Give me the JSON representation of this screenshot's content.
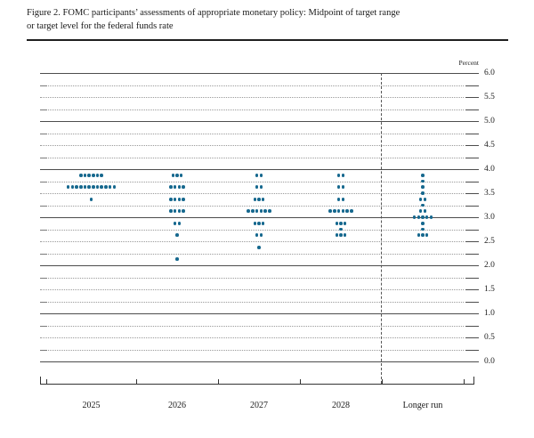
{
  "figure": {
    "title_line1": "Figure 2. FOMC participants’ assessments of appropriate monetary policy: Midpoint of target range",
    "title_line2": "or target level for the federal funds rate"
  },
  "chart_data": {
    "type": "scatter",
    "subtype": "fomc-dot-plot",
    "title": "Figure 2. FOMC participants' assessments of appropriate monetary policy: Midpoint of target range or target level for the federal funds rate",
    "percent_label": "Percent",
    "ylabel": "Percent",
    "ylim": [
      0.0,
      6.0
    ],
    "grid_step": 0.25,
    "y_tick_label_step": 0.5,
    "y_tick_labels": [
      "0.0",
      "0.5",
      "1.0",
      "1.5",
      "2.0",
      "2.5",
      "3.0",
      "3.5",
      "4.0",
      "4.5",
      "5.0",
      "5.5",
      "6.0"
    ],
    "categories": [
      "2025",
      "2026",
      "2027",
      "2028",
      "Longer run"
    ],
    "series": [
      {
        "name": "2025",
        "dots": [
          {
            "value": 3.875,
            "count": 6
          },
          {
            "value": 3.625,
            "count": 12
          },
          {
            "value": 3.375,
            "count": 1
          }
        ]
      },
      {
        "name": "2026",
        "dots": [
          {
            "value": 3.875,
            "count": 3
          },
          {
            "value": 3.625,
            "count": 4
          },
          {
            "value": 3.375,
            "count": 4
          },
          {
            "value": 3.125,
            "count": 4
          },
          {
            "value": 2.875,
            "count": 2
          },
          {
            "value": 2.625,
            "count": 1
          },
          {
            "value": 2.125,
            "count": 1
          }
        ]
      },
      {
        "name": "2027",
        "dots": [
          {
            "value": 3.875,
            "count": 2
          },
          {
            "value": 3.625,
            "count": 2
          },
          {
            "value": 3.375,
            "count": 3
          },
          {
            "value": 3.125,
            "count": 6
          },
          {
            "value": 2.875,
            "count": 3
          },
          {
            "value": 2.625,
            "count": 2
          },
          {
            "value": 2.375,
            "count": 1
          }
        ]
      },
      {
        "name": "2028",
        "dots": [
          {
            "value": 3.875,
            "count": 2
          },
          {
            "value": 3.625,
            "count": 2
          },
          {
            "value": 3.375,
            "count": 2
          },
          {
            "value": 3.125,
            "count": 6
          },
          {
            "value": 2.875,
            "count": 3
          },
          {
            "value": 2.75,
            "count": 1
          },
          {
            "value": 2.625,
            "count": 3
          }
        ]
      },
      {
        "name": "Longer run",
        "dots": [
          {
            "value": 3.875,
            "count": 1
          },
          {
            "value": 3.75,
            "count": 1
          },
          {
            "value": 3.625,
            "count": 1
          },
          {
            "value": 3.5,
            "count": 1
          },
          {
            "value": 3.375,
            "count": 2
          },
          {
            "value": 3.25,
            "count": 1
          },
          {
            "value": 3.125,
            "count": 2
          },
          {
            "value": 3.0,
            "count": 5
          },
          {
            "value": 2.875,
            "count": 1
          },
          {
            "value": 2.75,
            "count": 1
          },
          {
            "value": 2.625,
            "count": 3
          }
        ]
      }
    ],
    "participants_per_column": 19,
    "separator_between": [
      "2028",
      "Longer run"
    ],
    "legend_position": "none",
    "grid": "solid lines at integers, dotted lines at quarter-point steps",
    "colors": {
      "dot": "#16688e",
      "solid_grid": "#4d4d4d",
      "dotted_grid": "#9a9a9a",
      "tick": "#4d4d4d",
      "axis": "#333333",
      "title_rule": "#1f1f1f"
    }
  }
}
